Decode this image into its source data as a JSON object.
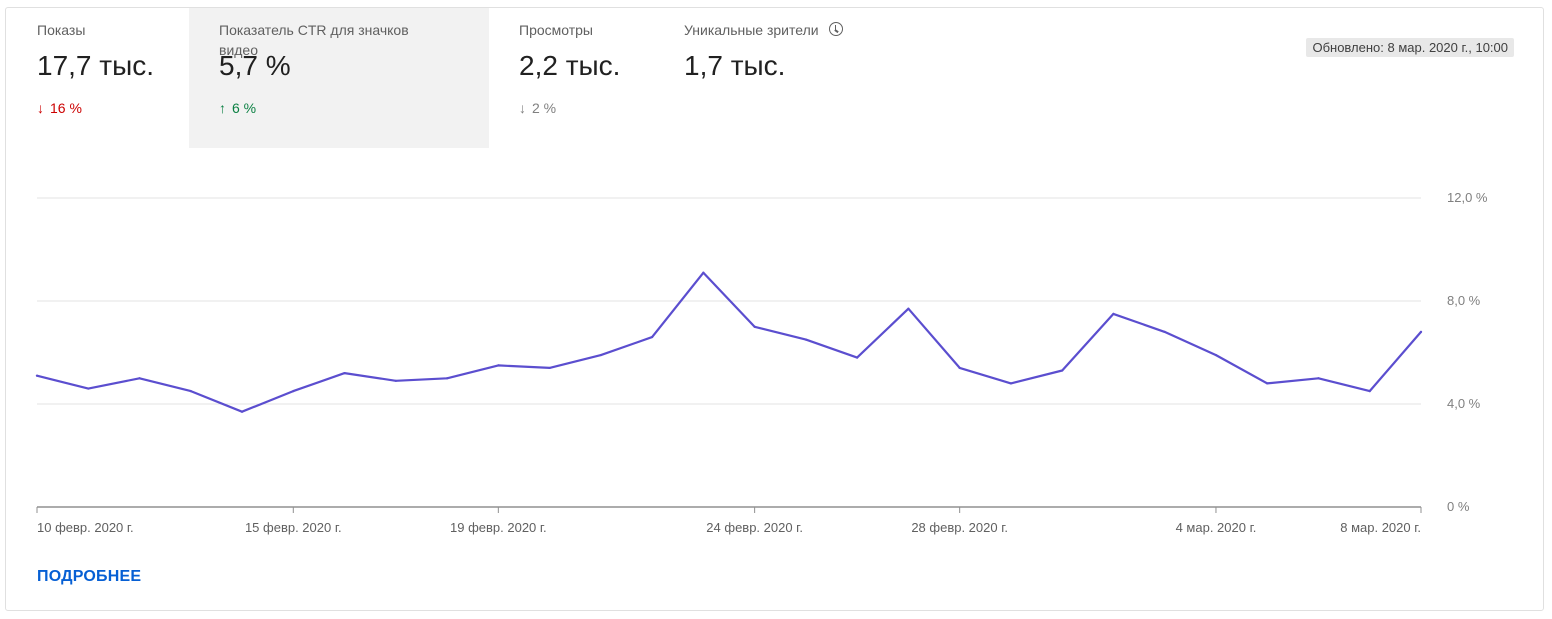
{
  "metrics": [
    {
      "label": "Показы",
      "value": "17,7 тыс.",
      "delta": "16 %",
      "direction": "down",
      "arrow": "↓"
    },
    {
      "label": "Показатель CTR для значков видео",
      "value": "5,7 %",
      "delta": "6 %",
      "direction": "up",
      "arrow": "↑"
    },
    {
      "label": "Просмотры",
      "value": "2,2 тыс.",
      "delta": "2 %",
      "direction": "neutral",
      "arrow": "↓"
    },
    {
      "label": "Уникальные зрители",
      "value": "1,7 тыс.",
      "icon": "clock-icon"
    }
  ],
  "updated": "Обновлено: 8 мар. 2020 г., 10:00",
  "more_link": "ПОДРОБНЕЕ",
  "colors": {
    "line": "#5b4ecf",
    "down": "#cc0000",
    "up": "#0b8043",
    "link": "#065fd4",
    "selected_bg": "#f2f2f2"
  },
  "chart_data": {
    "type": "line",
    "x": [
      "2020-02-10",
      "2020-02-11",
      "2020-02-12",
      "2020-02-13",
      "2020-02-14",
      "2020-02-15",
      "2020-02-16",
      "2020-02-17",
      "2020-02-18",
      "2020-02-19",
      "2020-02-20",
      "2020-02-21",
      "2020-02-22",
      "2020-02-23",
      "2020-02-24",
      "2020-02-25",
      "2020-02-26",
      "2020-02-27",
      "2020-02-28",
      "2020-02-29",
      "2020-03-01",
      "2020-03-02",
      "2020-03-03",
      "2020-03-04",
      "2020-03-05",
      "2020-03-06",
      "2020-03-07",
      "2020-03-08"
    ],
    "series": [
      {
        "values": [
          5.1,
          4.6,
          5.0,
          4.5,
          3.7,
          4.5,
          5.2,
          4.9,
          5.0,
          5.5,
          5.4,
          5.9,
          6.6,
          9.1,
          7.0,
          6.5,
          5.8,
          7.7,
          5.4,
          4.8,
          5.3,
          7.5,
          6.8,
          5.9,
          4.8,
          5.0,
          4.5,
          6.8
        ]
      }
    ],
    "ylim": [
      0,
      12
    ],
    "y_ticks": [
      {
        "value": 0,
        "label": "0 %"
      },
      {
        "value": 4,
        "label": "4,0 %"
      },
      {
        "value": 8,
        "label": "8,0 %"
      },
      {
        "value": 12,
        "label": "12,0 %"
      }
    ],
    "x_ticks": [
      {
        "index": 0,
        "label": "10 февр. 2020 г."
      },
      {
        "index": 5,
        "label": "15 февр. 2020 г."
      },
      {
        "index": 9,
        "label": "19 февр. 2020 г."
      },
      {
        "index": 14,
        "label": "24 февр. 2020 г."
      },
      {
        "index": 18,
        "label": "28 февр. 2020 г."
      },
      {
        "index": 23,
        "label": "4 мар. 2020 г."
      },
      {
        "index": 27,
        "label": "8 мар. 2020 г."
      }
    ],
    "grid": true,
    "y_axis_side": "right"
  }
}
